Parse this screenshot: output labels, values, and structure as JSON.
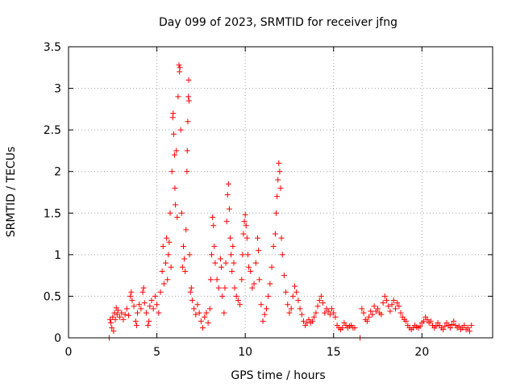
{
  "chart_data": {
    "type": "scatter",
    "title": "Day 099 of 2023, SRMTID for receiver jfng",
    "xlabel": "GPS time / hours",
    "ylabel": "SRMTID / TECUs",
    "xlim": [
      0,
      24
    ],
    "ylim": [
      0,
      3.5
    ],
    "xticks": [
      0,
      5,
      10,
      15,
      20
    ],
    "xtick_labels": [
      "0",
      "5",
      "10",
      "15",
      "20"
    ],
    "yticks": [
      0,
      0.5,
      1,
      1.5,
      2,
      2.5,
      3,
      3.5
    ],
    "ytick_labels": [
      "0",
      "0.5",
      "1",
      "1.5",
      "2",
      "2.5",
      "3",
      "3.5"
    ],
    "grid": true,
    "marker": "plus",
    "color": "#ff0000",
    "series": [
      {
        "name": "SRMTID",
        "points": [
          [
            2.3,
            0.0
          ],
          [
            2.35,
            0.22
          ],
          [
            2.4,
            0.18
          ],
          [
            2.45,
            0.12
          ],
          [
            2.5,
            0.25
          ],
          [
            2.55,
            0.08
          ],
          [
            2.6,
            0.3
          ],
          [
            2.65,
            0.22
          ],
          [
            2.7,
            0.36
          ],
          [
            2.75,
            0.28
          ],
          [
            2.8,
            0.33
          ],
          [
            2.9,
            0.25
          ],
          [
            3.0,
            0.3
          ],
          [
            3.1,
            0.22
          ],
          [
            3.2,
            0.28
          ],
          [
            3.3,
            0.35
          ],
          [
            3.4,
            0.27
          ],
          [
            3.5,
            0.5
          ],
          [
            3.55,
            0.55
          ],
          [
            3.6,
            0.45
          ],
          [
            3.7,
            0.38
          ],
          [
            3.8,
            0.2
          ],
          [
            3.85,
            0.15
          ],
          [
            3.9,
            0.3
          ],
          [
            4.0,
            0.4
          ],
          [
            4.1,
            0.35
          ],
          [
            4.2,
            0.55
          ],
          [
            4.25,
            0.6
          ],
          [
            4.3,
            0.42
          ],
          [
            4.4,
            0.3
          ],
          [
            4.5,
            0.15
          ],
          [
            4.55,
            0.2
          ],
          [
            4.6,
            0.38
          ],
          [
            4.7,
            0.45
          ],
          [
            4.8,
            0.35
          ],
          [
            4.9,
            0.5
          ],
          [
            5.0,
            0.4
          ],
          [
            5.1,
            0.3
          ],
          [
            5.2,
            0.55
          ],
          [
            5.3,
            0.8
          ],
          [
            5.35,
            1.1
          ],
          [
            5.4,
            0.65
          ],
          [
            5.5,
            0.9
          ],
          [
            5.55,
            1.2
          ],
          [
            5.6,
            0.7
          ],
          [
            5.65,
            1.0
          ],
          [
            5.7,
            1.15
          ],
          [
            5.75,
            1.5
          ],
          [
            5.8,
            0.85
          ],
          [
            5.85,
            2.0
          ],
          [
            5.9,
            2.65
          ],
          [
            5.92,
            2.7
          ],
          [
            5.95,
            2.45
          ],
          [
            6.0,
            2.2
          ],
          [
            6.02,
            1.8
          ],
          [
            6.05,
            1.6
          ],
          [
            6.1,
            2.25
          ],
          [
            6.15,
            1.45
          ],
          [
            6.2,
            2.9
          ],
          [
            6.25,
            3.28
          ],
          [
            6.28,
            3.2
          ],
          [
            6.3,
            3.25
          ],
          [
            6.35,
            2.5
          ],
          [
            6.4,
            1.5
          ],
          [
            6.45,
            0.85
          ],
          [
            6.5,
            1.1
          ],
          [
            6.55,
            0.95
          ],
          [
            6.6,
            0.8
          ],
          [
            6.65,
            1.3
          ],
          [
            6.7,
            2.0
          ],
          [
            6.72,
            2.25
          ],
          [
            6.75,
            2.6
          ],
          [
            6.78,
            2.9
          ],
          [
            6.8,
            3.1
          ],
          [
            6.82,
            2.85
          ],
          [
            6.85,
            1.0
          ],
          [
            6.9,
            0.55
          ],
          [
            6.95,
            0.6
          ],
          [
            7.0,
            0.45
          ],
          [
            7.1,
            0.35
          ],
          [
            7.2,
            0.28
          ],
          [
            7.3,
            0.4
          ],
          [
            7.4,
            0.3
          ],
          [
            7.5,
            0.2
          ],
          [
            7.6,
            0.12
          ],
          [
            7.7,
            0.25
          ],
          [
            7.8,
            0.3
          ],
          [
            7.9,
            0.18
          ],
          [
            8.0,
            0.35
          ],
          [
            8.05,
            0.7
          ],
          [
            8.1,
            1.0
          ],
          [
            8.15,
            1.45
          ],
          [
            8.2,
            1.35
          ],
          [
            8.25,
            1.1
          ],
          [
            8.3,
            0.9
          ],
          [
            8.4,
            0.7
          ],
          [
            8.5,
            0.6
          ],
          [
            8.6,
            0.95
          ],
          [
            8.65,
            0.85
          ],
          [
            8.7,
            0.5
          ],
          [
            8.8,
            0.3
          ],
          [
            8.85,
            0.6
          ],
          [
            8.9,
            0.9
          ],
          [
            8.95,
            1.4
          ],
          [
            9.0,
            1.72
          ],
          [
            9.05,
            1.85
          ],
          [
            9.1,
            1.55
          ],
          [
            9.15,
            1.2
          ],
          [
            9.2,
            1.0
          ],
          [
            9.25,
            0.8
          ],
          [
            9.3,
            1.1
          ],
          [
            9.35,
            0.9
          ],
          [
            9.4,
            0.6
          ],
          [
            9.5,
            0.5
          ],
          [
            9.6,
            0.45
          ],
          [
            9.7,
            0.4
          ],
          [
            9.8,
            0.7
          ],
          [
            9.85,
            1.0
          ],
          [
            9.9,
            1.25
          ],
          [
            9.95,
            1.4
          ],
          [
            10.0,
            1.48
          ],
          [
            10.05,
            1.35
          ],
          [
            10.1,
            1.2
          ],
          [
            10.15,
            1.0
          ],
          [
            10.2,
            0.85
          ],
          [
            10.3,
            0.8
          ],
          [
            10.4,
            0.6
          ],
          [
            10.5,
            0.65
          ],
          [
            10.6,
            0.9
          ],
          [
            10.7,
            1.2
          ],
          [
            10.75,
            1.05
          ],
          [
            10.8,
            0.7
          ],
          [
            10.9,
            0.4
          ],
          [
            11.0,
            0.2
          ],
          [
            11.1,
            0.28
          ],
          [
            11.2,
            0.35
          ],
          [
            11.3,
            0.5
          ],
          [
            11.4,
            0.65
          ],
          [
            11.5,
            0.85
          ],
          [
            11.6,
            1.1
          ],
          [
            11.7,
            1.25
          ],
          [
            11.75,
            1.5
          ],
          [
            11.8,
            1.7
          ],
          [
            11.85,
            1.9
          ],
          [
            11.9,
            2.1
          ],
          [
            11.95,
            2.0
          ],
          [
            12.0,
            1.8
          ],
          [
            12.05,
            1.2
          ],
          [
            12.1,
            1.0
          ],
          [
            12.2,
            0.75
          ],
          [
            12.3,
            0.55
          ],
          [
            12.4,
            0.4
          ],
          [
            12.5,
            0.3
          ],
          [
            12.6,
            0.35
          ],
          [
            12.7,
            0.5
          ],
          [
            12.8,
            0.62
          ],
          [
            12.9,
            0.55
          ],
          [
            13.0,
            0.45
          ],
          [
            13.1,
            0.35
          ],
          [
            13.2,
            0.28
          ],
          [
            13.3,
            0.2
          ],
          [
            13.4,
            0.15
          ],
          [
            13.5,
            0.18
          ],
          [
            13.6,
            0.22
          ],
          [
            13.7,
            0.18
          ],
          [
            13.8,
            0.2
          ],
          [
            13.9,
            0.25
          ],
          [
            14.0,
            0.3
          ],
          [
            14.1,
            0.38
          ],
          [
            14.2,
            0.45
          ],
          [
            14.3,
            0.5
          ],
          [
            14.4,
            0.42
          ],
          [
            14.5,
            0.3
          ],
          [
            14.6,
            0.35
          ],
          [
            14.7,
            0.32
          ],
          [
            14.8,
            0.28
          ],
          [
            14.9,
            0.35
          ],
          [
            15.0,
            0.3
          ],
          [
            15.1,
            0.25
          ],
          [
            15.2,
            0.15
          ],
          [
            15.3,
            0.12
          ],
          [
            15.4,
            0.1
          ],
          [
            15.5,
            0.12
          ],
          [
            15.6,
            0.18
          ],
          [
            15.7,
            0.15
          ],
          [
            15.8,
            0.12
          ],
          [
            15.9,
            0.14
          ],
          [
            16.0,
            0.15
          ],
          [
            16.1,
            0.12
          ],
          [
            16.2,
            0.12
          ],
          [
            16.5,
            0.0
          ],
          [
            16.6,
            0.35
          ],
          [
            16.7,
            0.3
          ],
          [
            16.8,
            0.22
          ],
          [
            16.9,
            0.2
          ],
          [
            17.0,
            0.25
          ],
          [
            17.1,
            0.32
          ],
          [
            17.2,
            0.28
          ],
          [
            17.3,
            0.38
          ],
          [
            17.4,
            0.32
          ],
          [
            17.5,
            0.35
          ],
          [
            17.6,
            0.3
          ],
          [
            17.7,
            0.28
          ],
          [
            17.8,
            0.42
          ],
          [
            17.9,
            0.5
          ],
          [
            18.0,
            0.45
          ],
          [
            18.1,
            0.38
          ],
          [
            18.2,
            0.32
          ],
          [
            18.3,
            0.4
          ],
          [
            18.4,
            0.45
          ],
          [
            18.5,
            0.35
          ],
          [
            18.6,
            0.42
          ],
          [
            18.7,
            0.38
          ],
          [
            18.8,
            0.3
          ],
          [
            18.9,
            0.25
          ],
          [
            19.0,
            0.22
          ],
          [
            19.1,
            0.2
          ],
          [
            19.2,
            0.15
          ],
          [
            19.3,
            0.12
          ],
          [
            19.4,
            0.1
          ],
          [
            19.5,
            0.12
          ],
          [
            19.6,
            0.15
          ],
          [
            19.7,
            0.13
          ],
          [
            19.8,
            0.12
          ],
          [
            19.9,
            0.14
          ],
          [
            20.0,
            0.18
          ],
          [
            20.1,
            0.2
          ],
          [
            20.2,
            0.25
          ],
          [
            20.3,
            0.22
          ],
          [
            20.4,
            0.18
          ],
          [
            20.5,
            0.2
          ],
          [
            20.6,
            0.15
          ],
          [
            20.7,
            0.12
          ],
          [
            20.8,
            0.14
          ],
          [
            20.9,
            0.18
          ],
          [
            21.0,
            0.15
          ],
          [
            21.1,
            0.12
          ],
          [
            21.2,
            0.1
          ],
          [
            21.3,
            0.14
          ],
          [
            21.4,
            0.18
          ],
          [
            21.5,
            0.15
          ],
          [
            21.6,
            0.12
          ],
          [
            21.7,
            0.16
          ],
          [
            21.8,
            0.2
          ],
          [
            21.9,
            0.15
          ],
          [
            22.0,
            0.12
          ],
          [
            22.1,
            0.14
          ],
          [
            22.2,
            0.1
          ],
          [
            22.3,
            0.12
          ],
          [
            22.4,
            0.15
          ],
          [
            22.5,
            0.1
          ],
          [
            22.6,
            0.12
          ],
          [
            22.7,
            0.08
          ],
          [
            22.8,
            0.15
          ]
        ]
      }
    ]
  }
}
